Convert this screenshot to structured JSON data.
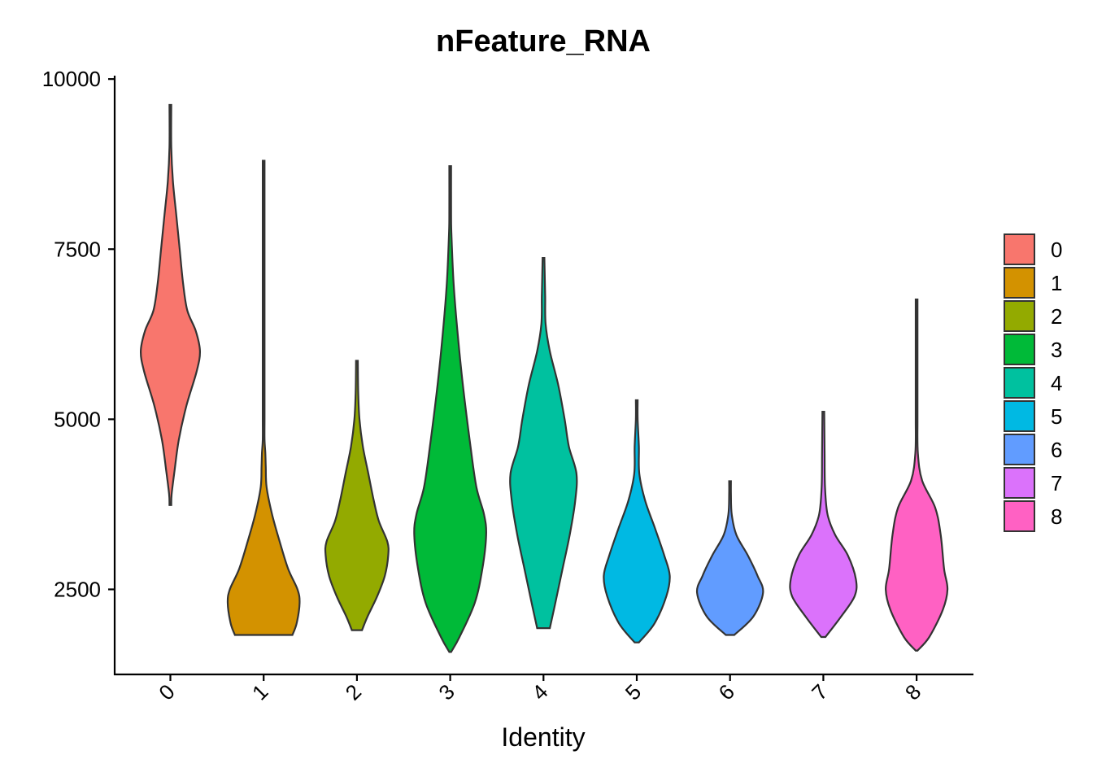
{
  "chart_data": {
    "type": "violin",
    "title": "nFeature_RNA",
    "xlabel": "Identity",
    "ylabel": "",
    "ylim": [
      1250,
      10050
    ],
    "yticks": [
      2500,
      5000,
      7500,
      10000
    ],
    "categories": [
      "0",
      "1",
      "2",
      "3",
      "4",
      "5",
      "6",
      "7",
      "8"
    ],
    "colors": [
      "#F8766D",
      "#D39200",
      "#93AA00",
      "#00BA38",
      "#00C19F",
      "#00B9E3",
      "#619CFF",
      "#DB72FB",
      "#FF61C3"
    ],
    "legend": {
      "position": "right",
      "entries": [
        "0",
        "1",
        "2",
        "3",
        "4",
        "5",
        "6",
        "7",
        "8"
      ]
    },
    "grid": false,
    "violins": [
      {
        "name": "0",
        "min": 3740,
        "max": 9620,
        "profile": [
          [
            3740,
            0.0
          ],
          [
            3900,
            0.03
          ],
          [
            4250,
            0.1
          ],
          [
            4700,
            0.2
          ],
          [
            5200,
            0.38
          ],
          [
            5700,
            0.62
          ],
          [
            6000,
            0.7
          ],
          [
            6300,
            0.6
          ],
          [
            6600,
            0.4
          ],
          [
            7000,
            0.3
          ],
          [
            7500,
            0.22
          ],
          [
            8000,
            0.14
          ],
          [
            8500,
            0.06
          ],
          [
            9000,
            0.01
          ],
          [
            9620,
            0.0
          ]
        ]
      },
      {
        "name": "1",
        "min": 1830,
        "max": 8800,
        "profile": [
          [
            1830,
            0.68
          ],
          [
            2000,
            0.78
          ],
          [
            2300,
            0.85
          ],
          [
            2500,
            0.8
          ],
          [
            2800,
            0.58
          ],
          [
            3200,
            0.38
          ],
          [
            3600,
            0.2
          ],
          [
            4000,
            0.07
          ],
          [
            4300,
            0.05
          ],
          [
            4500,
            0.04
          ],
          [
            4700,
            0.02
          ],
          [
            5000,
            0.015
          ],
          [
            5500,
            0.005
          ],
          [
            6500,
            0.003
          ],
          [
            8800,
            0.0
          ]
        ]
      },
      {
        "name": "2",
        "min": 1900,
        "max": 5860,
        "profile": [
          [
            1900,
            0.12
          ],
          [
            2100,
            0.25
          ],
          [
            2400,
            0.48
          ],
          [
            2700,
            0.66
          ],
          [
            3000,
            0.74
          ],
          [
            3200,
            0.72
          ],
          [
            3500,
            0.52
          ],
          [
            3800,
            0.4
          ],
          [
            4200,
            0.27
          ],
          [
            4600,
            0.14
          ],
          [
            5000,
            0.06
          ],
          [
            5400,
            0.03
          ],
          [
            5860,
            0.0
          ]
        ]
      },
      {
        "name": "3",
        "min": 1580,
        "max": 8720,
        "profile": [
          [
            1580,
            0.0
          ],
          [
            1800,
            0.22
          ],
          [
            2300,
            0.58
          ],
          [
            2800,
            0.76
          ],
          [
            3300,
            0.85
          ],
          [
            3600,
            0.8
          ],
          [
            4000,
            0.62
          ],
          [
            4600,
            0.48
          ],
          [
            5500,
            0.3
          ],
          [
            6300,
            0.17
          ],
          [
            7000,
            0.08
          ],
          [
            7700,
            0.03
          ],
          [
            8000,
            0.01
          ],
          [
            8720,
            0.0
          ]
        ]
      },
      {
        "name": "4",
        "min": 1930,
        "max": 7370,
        "profile": [
          [
            1930,
            0.15
          ],
          [
            2300,
            0.28
          ],
          [
            2800,
            0.45
          ],
          [
            3300,
            0.62
          ],
          [
            3800,
            0.75
          ],
          [
            4200,
            0.78
          ],
          [
            4600,
            0.6
          ],
          [
            5000,
            0.5
          ],
          [
            5500,
            0.35
          ],
          [
            6000,
            0.15
          ],
          [
            6400,
            0.05
          ],
          [
            6800,
            0.04
          ],
          [
            7100,
            0.03
          ],
          [
            7370,
            0.0
          ]
        ]
      },
      {
        "name": "5",
        "min": 1720,
        "max": 5280,
        "profile": [
          [
            1720,
            0.05
          ],
          [
            2000,
            0.42
          ],
          [
            2400,
            0.7
          ],
          [
            2700,
            0.78
          ],
          [
            3000,
            0.65
          ],
          [
            3400,
            0.43
          ],
          [
            3800,
            0.2
          ],
          [
            4200,
            0.06
          ],
          [
            4600,
            0.05
          ],
          [
            5000,
            0.02
          ],
          [
            5280,
            0.0
          ]
        ]
      },
      {
        "name": "6",
        "min": 1830,
        "max": 4090,
        "profile": [
          [
            1830,
            0.1
          ],
          [
            2100,
            0.55
          ],
          [
            2450,
            0.78
          ],
          [
            2700,
            0.65
          ],
          [
            3000,
            0.42
          ],
          [
            3300,
            0.15
          ],
          [
            3600,
            0.04
          ],
          [
            3900,
            0.015
          ],
          [
            4090,
            0.0
          ]
        ]
      },
      {
        "name": "7",
        "min": 1800,
        "max": 5110,
        "profile": [
          [
            1800,
            0.05
          ],
          [
            2100,
            0.42
          ],
          [
            2400,
            0.74
          ],
          [
            2650,
            0.77
          ],
          [
            3000,
            0.58
          ],
          [
            3300,
            0.28
          ],
          [
            3600,
            0.1
          ],
          [
            4000,
            0.04
          ],
          [
            4500,
            0.03
          ],
          [
            5110,
            0.0
          ]
        ]
      },
      {
        "name": "8",
        "min": 1600,
        "max": 6760,
        "profile": [
          [
            1600,
            0.0
          ],
          [
            1800,
            0.3
          ],
          [
            2200,
            0.62
          ],
          [
            2500,
            0.73
          ],
          [
            2800,
            0.65
          ],
          [
            3300,
            0.57
          ],
          [
            3700,
            0.44
          ],
          [
            4100,
            0.13
          ],
          [
            4500,
            0.03
          ],
          [
            5000,
            0.015
          ],
          [
            5500,
            0.01
          ],
          [
            6000,
            0.01
          ],
          [
            6760,
            0.0
          ]
        ]
      }
    ]
  }
}
